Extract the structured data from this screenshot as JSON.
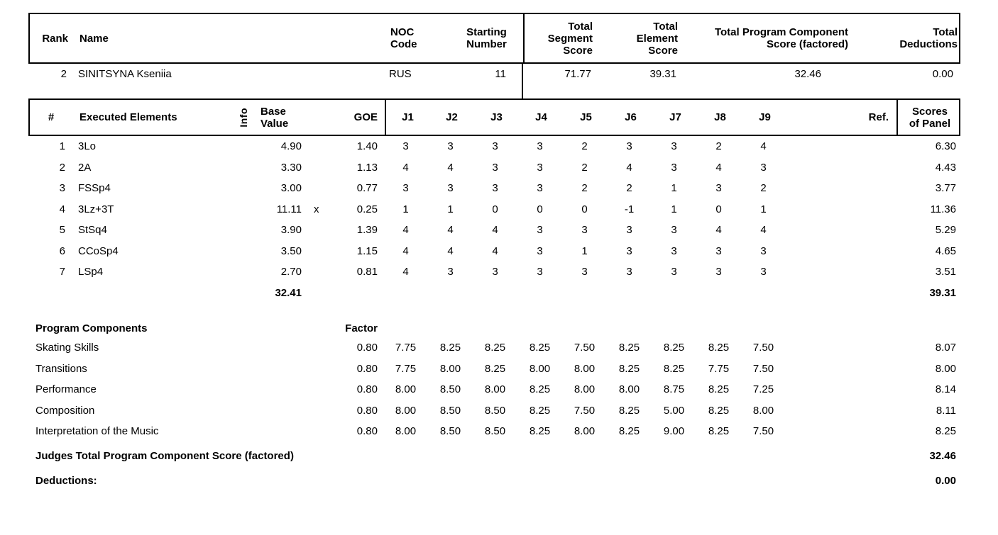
{
  "result_header": {
    "rank_label": "Rank",
    "name_label": "Name",
    "noc_label": [
      "NOC",
      "Code"
    ],
    "starting_label": [
      "Starting",
      "Number"
    ],
    "segment_label": [
      "Total",
      "Segment",
      "Score"
    ],
    "element_label": [
      "Total",
      "Element",
      "Score"
    ],
    "pcs_label": [
      "Total Program Component",
      "Score (factored)"
    ],
    "deductions_label": [
      "Total",
      "Deductions"
    ]
  },
  "skater": {
    "rank": "2",
    "name": "SINITSYNA Kseniia",
    "noc": "RUS",
    "starting_number": "11",
    "total_segment_score": "71.77",
    "total_element_score": "39.31",
    "total_pcs_factored": "32.46",
    "total_deductions": "0.00"
  },
  "elements_table": {
    "num_label": "#",
    "elements_label": "Executed Elements",
    "info_label": "Info",
    "base_value_label": [
      "Base",
      "Value"
    ],
    "goe_label": "GOE",
    "judge_labels": [
      "J1",
      "J2",
      "J3",
      "J4",
      "J5",
      "J6",
      "J7",
      "J8",
      "J9"
    ],
    "ref_label": "Ref.",
    "scores_label": [
      "Scores",
      "of Panel"
    ],
    "rows": [
      {
        "num": "1",
        "name": "3Lo",
        "info": "",
        "base_value": "4.90",
        "x": "",
        "goe": "1.40",
        "judges": [
          "3",
          "3",
          "3",
          "3",
          "2",
          "3",
          "3",
          "2",
          "4"
        ],
        "ref": "",
        "score": "6.30"
      },
      {
        "num": "2",
        "name": "2A",
        "info": "",
        "base_value": "3.30",
        "x": "",
        "goe": "1.13",
        "judges": [
          "4",
          "4",
          "3",
          "3",
          "2",
          "4",
          "3",
          "4",
          "3"
        ],
        "ref": "",
        "score": "4.43"
      },
      {
        "num": "3",
        "name": "FSSp4",
        "info": "",
        "base_value": "3.00",
        "x": "",
        "goe": "0.77",
        "judges": [
          "3",
          "3",
          "3",
          "3",
          "2",
          "2",
          "1",
          "3",
          "2"
        ],
        "ref": "",
        "score": "3.77"
      },
      {
        "num": "4",
        "name": "3Lz+3T",
        "info": "",
        "base_value": "11.11",
        "x": "x",
        "goe": "0.25",
        "judges": [
          "1",
          "1",
          "0",
          "0",
          "0",
          "-1",
          "1",
          "0",
          "1"
        ],
        "ref": "",
        "score": "11.36"
      },
      {
        "num": "5",
        "name": "StSq4",
        "info": "",
        "base_value": "3.90",
        "x": "",
        "goe": "1.39",
        "judges": [
          "4",
          "4",
          "4",
          "3",
          "3",
          "3",
          "3",
          "4",
          "4"
        ],
        "ref": "",
        "score": "5.29"
      },
      {
        "num": "6",
        "name": "CCoSp4",
        "info": "",
        "base_value": "3.50",
        "x": "",
        "goe": "1.15",
        "judges": [
          "4",
          "4",
          "4",
          "3",
          "1",
          "3",
          "3",
          "3",
          "3"
        ],
        "ref": "",
        "score": "4.65"
      },
      {
        "num": "7",
        "name": "LSp4",
        "info": "",
        "base_value": "2.70",
        "x": "",
        "goe": "0.81",
        "judges": [
          "4",
          "3",
          "3",
          "3",
          "3",
          "3",
          "3",
          "3",
          "3"
        ],
        "ref": "",
        "score": "3.51"
      }
    ],
    "total_base_value": "32.41",
    "total_score": "39.31"
  },
  "components_table": {
    "title": "Program Components",
    "factor_label": "Factor",
    "rows": [
      {
        "name": "Skating Skills",
        "factor": "0.80",
        "judges": [
          "7.75",
          "8.25",
          "8.25",
          "8.25",
          "7.50",
          "8.25",
          "8.25",
          "8.25",
          "7.50"
        ],
        "score": "8.07"
      },
      {
        "name": "Transitions",
        "factor": "0.80",
        "judges": [
          "7.75",
          "8.00",
          "8.25",
          "8.00",
          "8.00",
          "8.25",
          "8.25",
          "7.75",
          "7.50"
        ],
        "score": "8.00"
      },
      {
        "name": "Performance",
        "factor": "0.80",
        "judges": [
          "8.00",
          "8.50",
          "8.00",
          "8.25",
          "8.00",
          "8.00",
          "8.75",
          "8.25",
          "7.25"
        ],
        "score": "8.14"
      },
      {
        "name": "Composition",
        "factor": "0.80",
        "judges": [
          "8.00",
          "8.50",
          "8.50",
          "8.25",
          "7.50",
          "8.25",
          "5.00",
          "8.25",
          "8.00"
        ],
        "score": "8.11"
      },
      {
        "name": "Interpretation of the Music",
        "factor": "0.80",
        "judges": [
          "8.00",
          "8.50",
          "8.50",
          "8.25",
          "8.00",
          "8.25",
          "9.00",
          "8.25",
          "7.50"
        ],
        "score": "8.25"
      }
    ],
    "judges_total_label": "Judges Total Program Component Score (factored)",
    "judges_total_value": "32.46",
    "deductions_label": "Deductions:",
    "deductions_value": "0.00"
  }
}
